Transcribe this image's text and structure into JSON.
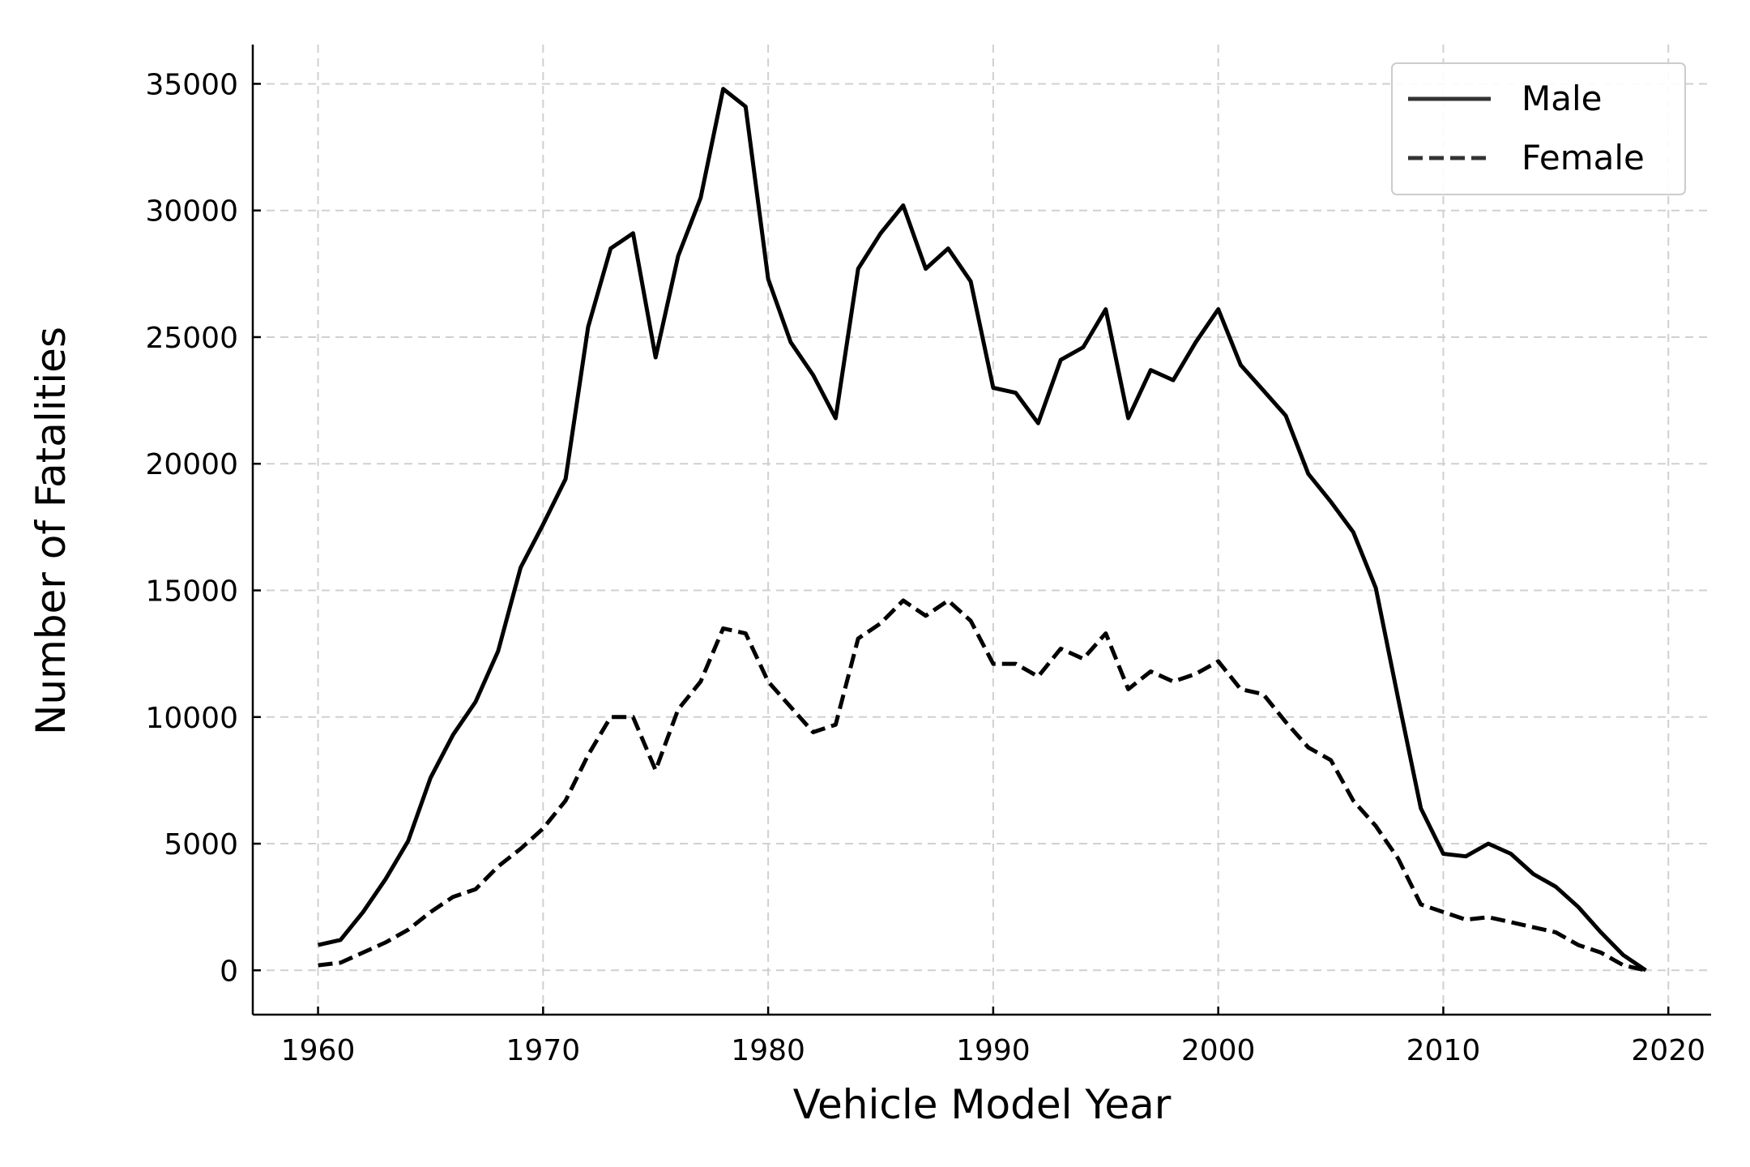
{
  "chart_data": {
    "type": "line",
    "title": "",
    "xlabel": "Vehicle Model Year",
    "ylabel": "Number of Fatalities",
    "xlim": [
      1957.1,
      2021.9
    ],
    "ylim": [
      -1750,
      36550
    ],
    "xticks": [
      1960,
      1970,
      1980,
      1990,
      2000,
      2010,
      2020
    ],
    "yticks": [
      0,
      5000,
      10000,
      15000,
      20000,
      25000,
      30000,
      35000
    ],
    "grid": true,
    "legend_position": "top-right",
    "x": [
      1960,
      1961,
      1962,
      1963,
      1964,
      1965,
      1966,
      1967,
      1968,
      1969,
      1970,
      1971,
      1972,
      1973,
      1974,
      1975,
      1976,
      1977,
      1978,
      1979,
      1980,
      1981,
      1982,
      1983,
      1984,
      1985,
      1986,
      1987,
      1988,
      1989,
      1990,
      1991,
      1992,
      1993,
      1994,
      1995,
      1996,
      1997,
      1998,
      1999,
      2000,
      2001,
      2002,
      2003,
      2004,
      2005,
      2006,
      2007,
      2008,
      2009,
      2010,
      2011,
      2012,
      2013,
      2014,
      2015,
      2016,
      2017,
      2018,
      2019
    ],
    "series": [
      {
        "name": "Male",
        "style": "solid",
        "color": "#000000",
        "values": [
          1000,
          1200,
          2300,
          3600,
          5100,
          7600,
          9300,
          10600,
          12600,
          15900,
          17600,
          19400,
          25400,
          28500,
          29100,
          24200,
          28200,
          30500,
          34800,
          34100,
          27300,
          24800,
          23500,
          21800,
          27700,
          29100,
          30200,
          27700,
          28500,
          27200,
          23000,
          22800,
          21600,
          24100,
          24600,
          26100,
          21800,
          23700,
          23300,
          24800,
          26100,
          23900,
          22900,
          21900,
          19600,
          18500,
          17300,
          15100,
          10700,
          6400,
          4600,
          4500,
          5000,
          4600,
          3800,
          3300,
          2500,
          1500,
          600,
          0
        ]
      },
      {
        "name": "Female",
        "style": "dashed",
        "color": "#000000",
        "values": [
          200,
          300,
          700,
          1100,
          1600,
          2300,
          2900,
          3200,
          4100,
          4800,
          5600,
          6700,
          8500,
          10000,
          10000,
          7900,
          10300,
          11400,
          13500,
          13300,
          11400,
          10400,
          9400,
          9700,
          13100,
          13700,
          14600,
          14000,
          14600,
          13800,
          12100,
          12100,
          11600,
          12700,
          12300,
          13300,
          11100,
          11800,
          11400,
          11700,
          12200,
          11100,
          10900,
          9800,
          8800,
          8300,
          6700,
          5700,
          4400,
          2600,
          2300,
          2000,
          2100,
          1900,
          1700,
          1500,
          1000,
          700,
          200,
          0
        ]
      }
    ]
  }
}
